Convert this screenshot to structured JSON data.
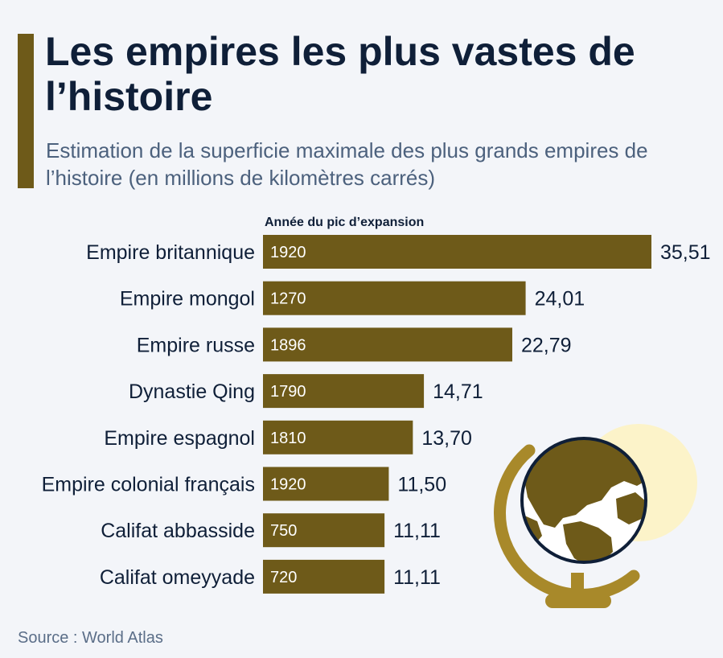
{
  "header": {
    "title": "Les empires les plus vastes de l’histoire",
    "subtitle": "Estimation de la superficie maximale des plus grands empires de l’histoire (en millions de kilomètres carrés)"
  },
  "footer": {
    "source": "Source : World Atlas"
  },
  "colors": {
    "bar": "#6e5a19",
    "accent": "#6e5a19",
    "title": "#0f1f38",
    "subtitle": "#4c617d",
    "globe_halo": "#fcf3c9",
    "globe_stand": "#a8892a",
    "globe_land": "#6e5a19",
    "globe_ocean": "#ffffff"
  },
  "illustration": {
    "icon": "globe-icon"
  },
  "chart_data": {
    "type": "bar",
    "orientation": "horizontal",
    "title": "Les empires les plus vastes de l’histoire",
    "subtitle": "Estimation de la superficie maximale des plus grands empires de l’histoire (en millions de kilomètres carrés)",
    "bar_text_header": "Année du pic d’expansion",
    "categories": [
      "Empire britannique",
      "Empire mongol",
      "Empire russe",
      "Dynastie Qing",
      "Empire espagnol",
      "Empire colonial français",
      "Califat abbasside",
      "Califat omeyyade"
    ],
    "values": [
      35.51,
      24.01,
      22.79,
      14.71,
      13.7,
      11.5,
      11.11,
      11.11
    ],
    "value_labels": [
      "35,51",
      "24,01",
      "22,79",
      "14,71",
      "13,70",
      "11,50",
      "11,11",
      "11,11"
    ],
    "bar_text": [
      "1920",
      "1270",
      "1896",
      "1790",
      "1810",
      "1920",
      "750",
      "720"
    ],
    "xlim": [
      0,
      35.51
    ],
    "grid": false,
    "legend": "none"
  }
}
